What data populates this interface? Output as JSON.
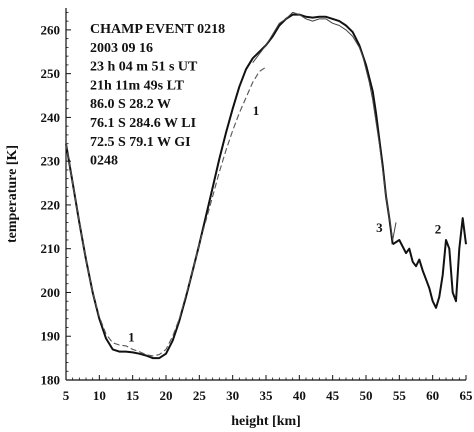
{
  "chart_data": {
    "type": "line",
    "title": "",
    "xlabel": "height [km]",
    "ylabel": "temperature [K]",
    "xlim": [
      5,
      65
    ],
    "ylim": [
      180,
      265
    ],
    "xticks": [
      5,
      10,
      15,
      20,
      25,
      30,
      35,
      40,
      45,
      50,
      55,
      60,
      65
    ],
    "yticks": [
      180,
      190,
      200,
      210,
      220,
      230,
      240,
      250,
      260
    ],
    "grid": false,
    "annotation_lines": [
      "CHAMP EVENT 0218",
      "2003 09 16",
      "23 h 04 m 51 s  UT",
      "21h 11m 49s  LT",
      "86.0 S   28.2 W",
      "76.1 S  284.6 W LI",
      "72.5 S   79.1 W GI",
      "0248"
    ],
    "curve_labels": [
      {
        "text": "1",
        "x": 14.8,
        "y": 188.8
      },
      {
        "text": "1",
        "x": 33.5,
        "y": 240.5
      },
      {
        "text": "2",
        "x": 60.8,
        "y": 213.5
      },
      {
        "text": "3",
        "x": 52.0,
        "y": 213.8
      }
    ],
    "series": [
      {
        "style": "solid",
        "x": [
          5,
          6,
          7,
          8,
          9,
          10,
          11,
          12,
          13,
          14,
          15,
          16,
          17,
          18,
          19,
          20,
          21,
          22,
          23,
          24,
          25,
          26,
          27,
          28,
          29,
          30,
          31,
          32,
          33,
          34,
          35,
          36,
          37,
          38,
          39,
          40,
          41,
          42,
          43,
          44,
          45,
          46,
          47,
          48,
          49,
          50,
          51,
          51.5,
          52,
          52.5,
          53,
          53.5,
          54
        ],
        "values": [
          234,
          225,
          216,
          207.5,
          200,
          194,
          189.5,
          187,
          186.5,
          186.5,
          186.3,
          186,
          185.6,
          185,
          185,
          186,
          189,
          193.5,
          199,
          205,
          211,
          217.5,
          224,
          230.5,
          236.5,
          242,
          247,
          251,
          253.5,
          255,
          256.5,
          258.5,
          261,
          262.5,
          263.5,
          263.5,
          263,
          262.8,
          263,
          263,
          262.5,
          262,
          261,
          259.5,
          256.5,
          252,
          246,
          241,
          235,
          229,
          222,
          217,
          211
        ]
      },
      {
        "style": "dashed",
        "x": [
          5,
          6,
          7,
          8,
          9,
          10,
          11,
          12,
          13,
          14,
          15,
          16,
          17,
          18,
          19,
          20,
          21,
          22,
          23,
          24,
          25,
          26,
          27,
          28,
          29,
          30,
          31,
          32,
          33,
          34,
          35
        ],
        "values": [
          234,
          225,
          216,
          207.5,
          200,
          194.5,
          190.5,
          188.5,
          188,
          187.8,
          187,
          186.5,
          185.8,
          185.5,
          185.8,
          187,
          190,
          194,
          199.5,
          205,
          211,
          216.5,
          222,
          227.5,
          232.5,
          237,
          241,
          244.5,
          248,
          250.5,
          251.5
        ]
      },
      {
        "style": "thin",
        "x": [
          33,
          34,
          35,
          36,
          37,
          38,
          39,
          40,
          41,
          42,
          43,
          44,
          45,
          46,
          47,
          48,
          49,
          49.5,
          50,
          50.5,
          51,
          51.5,
          52,
          52.5,
          53,
          53.5,
          54,
          54.5
        ],
        "values": [
          252.5,
          254.5,
          256.5,
          259,
          261.5,
          262.5,
          264,
          263.5,
          262.5,
          262,
          262.5,
          262.5,
          261.5,
          261,
          260,
          258.5,
          256,
          254,
          251,
          248,
          244,
          239,
          234,
          228,
          222,
          217,
          212,
          216
        ]
      },
      {
        "style": "solid",
        "x": [
          54,
          55,
          56,
          56.5,
          57,
          57.5,
          58,
          58.5,
          59,
          59.5,
          60,
          60.5,
          61,
          61.5,
          62,
          62.5,
          63,
          63.5,
          64,
          64.5,
          65
        ],
        "values": [
          211,
          212,
          209,
          210,
          207,
          206,
          207.5,
          205,
          203,
          201,
          198,
          196.5,
          199,
          204,
          212,
          210,
          200,
          198,
          210,
          217,
          211
        ]
      }
    ]
  }
}
